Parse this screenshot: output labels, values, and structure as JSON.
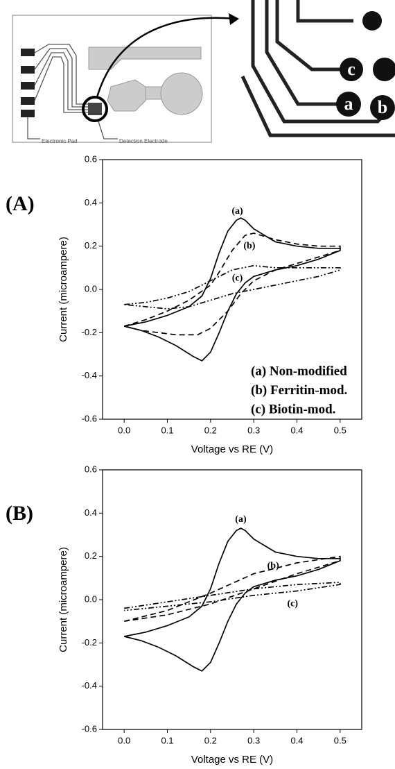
{
  "diagram": {
    "pad_label": "Electronic Pad",
    "electrode_label": "Detection Electrode",
    "zoom_labels": [
      "a",
      "b",
      "c"
    ]
  },
  "chart_data": [
    {
      "type": "line",
      "panel_label": "(A)",
      "x_label": "Voltage vs RE (V)",
      "y_label": "Current (microampere)",
      "xlim": [
        -0.05,
        0.55
      ],
      "ylim": [
        -0.6,
        0.6
      ],
      "xticks": [
        {
          "value": 0,
          "label": "0.0"
        },
        0.1,
        0.2,
        0.3,
        0.4,
        0.5
      ],
      "yticks": [
        -0.6,
        -0.4,
        -0.2,
        {
          "value": 0,
          "label": "0.0"
        },
        0.2,
        0.4,
        0.6
      ],
      "legend_text": [
        "(a) Non-modified",
        "(b) Ferritin-mod.",
        "(c) Biotin-mod."
      ],
      "series": [
        {
          "name": "(a)",
          "color": "#000000",
          "line_style": "solid",
          "x": [
            0.0,
            0.05,
            0.1,
            0.15,
            0.18,
            0.2,
            0.22,
            0.24,
            0.26,
            0.27,
            0.28,
            0.3,
            0.35,
            0.4,
            0.45,
            0.5,
            0.5,
            0.45,
            0.4,
            0.35,
            0.3,
            0.28,
            0.26,
            0.24,
            0.22,
            0.2,
            0.18,
            0.16,
            0.12,
            0.08,
            0.04,
            0.0
          ],
          "values": [
            -0.17,
            -0.15,
            -0.12,
            -0.08,
            -0.03,
            0.05,
            0.17,
            0.27,
            0.32,
            0.33,
            0.32,
            0.28,
            0.22,
            0.2,
            0.19,
            0.19,
            0.18,
            0.14,
            0.11,
            0.09,
            0.06,
            0.03,
            -0.02,
            -0.1,
            -0.2,
            -0.29,
            -0.33,
            -0.31,
            -0.26,
            -0.22,
            -0.19,
            -0.17
          ]
        },
        {
          "name": "(b)",
          "color": "#000000",
          "line_style": "dashed",
          "x": [
            0.0,
            0.05,
            0.1,
            0.15,
            0.2,
            0.22,
            0.25,
            0.28,
            0.3,
            0.35,
            0.4,
            0.45,
            0.5,
            0.5,
            0.45,
            0.4,
            0.35,
            0.3,
            0.27,
            0.24,
            0.2,
            0.17,
            0.12,
            0.08,
            0.04,
            0.0
          ],
          "values": [
            -0.17,
            -0.14,
            -0.1,
            -0.05,
            0.02,
            0.08,
            0.18,
            0.25,
            0.26,
            0.23,
            0.21,
            0.2,
            0.2,
            0.18,
            0.15,
            0.12,
            0.09,
            0.04,
            -0.02,
            -0.1,
            -0.18,
            -0.21,
            -0.21,
            -0.2,
            -0.19,
            -0.17
          ]
        },
        {
          "name": "(c)",
          "color": "#000000",
          "line_style": "dash-dot",
          "x": [
            0.0,
            0.05,
            0.1,
            0.15,
            0.2,
            0.25,
            0.3,
            0.35,
            0.4,
            0.45,
            0.5,
            0.5,
            0.45,
            0.4,
            0.35,
            0.3,
            0.25,
            0.2,
            0.15,
            0.1,
            0.05,
            0.0
          ],
          "values": [
            -0.07,
            -0.06,
            -0.04,
            -0.01,
            0.04,
            0.09,
            0.11,
            0.1,
            0.1,
            0.1,
            0.1,
            0.09,
            0.06,
            0.04,
            0.02,
            0.0,
            -0.02,
            -0.05,
            -0.08,
            -0.09,
            -0.08,
            -0.07
          ]
        }
      ]
    },
    {
      "type": "line",
      "panel_label": "(B)",
      "x_label": "Voltage vs RE (V)",
      "y_label": "Current (microampere)",
      "xlim": [
        -0.05,
        0.55
      ],
      "ylim": [
        -0.6,
        0.6
      ],
      "xticks": [
        {
          "value": 0,
          "label": "0.0"
        },
        0.1,
        0.2,
        0.3,
        0.4,
        0.5
      ],
      "yticks": [
        -0.6,
        -0.4,
        -0.2,
        {
          "value": 0,
          "label": "0.0"
        },
        0.2,
        0.4,
        0.6
      ],
      "series": [
        {
          "name": "(a)",
          "color": "#000000",
          "line_style": "solid",
          "x": [
            0.0,
            0.05,
            0.1,
            0.15,
            0.18,
            0.2,
            0.22,
            0.24,
            0.26,
            0.27,
            0.28,
            0.3,
            0.35,
            0.4,
            0.45,
            0.5,
            0.5,
            0.45,
            0.4,
            0.35,
            0.3,
            0.28,
            0.26,
            0.24,
            0.22,
            0.2,
            0.18,
            0.16,
            0.12,
            0.08,
            0.04,
            0.0
          ],
          "values": [
            -0.17,
            -0.15,
            -0.12,
            -0.08,
            -0.03,
            0.05,
            0.17,
            0.27,
            0.32,
            0.33,
            0.32,
            0.28,
            0.22,
            0.2,
            0.19,
            0.19,
            0.18,
            0.14,
            0.11,
            0.09,
            0.06,
            0.03,
            -0.02,
            -0.1,
            -0.2,
            -0.29,
            -0.33,
            -0.31,
            -0.26,
            -0.22,
            -0.19,
            -0.17
          ]
        },
        {
          "name": "(b)",
          "color": "#000000",
          "line_style": "dashed",
          "x": [
            0.0,
            0.1,
            0.2,
            0.3,
            0.4,
            0.5,
            0.5,
            0.4,
            0.3,
            0.2,
            0.1,
            0.0
          ],
          "values": [
            -0.1,
            -0.05,
            0.03,
            0.12,
            0.17,
            0.2,
            0.18,
            0.12,
            0.05,
            -0.02,
            -0.07,
            -0.1
          ]
        },
        {
          "name": "(c)",
          "color": "#000000",
          "line_style": "dash-dot",
          "x": [
            0.0,
            0.1,
            0.2,
            0.3,
            0.4,
            0.5,
            0.5,
            0.4,
            0.3,
            0.2,
            0.1,
            0.0
          ],
          "values": [
            -0.04,
            -0.01,
            0.02,
            0.05,
            0.07,
            0.08,
            0.07,
            0.04,
            0.02,
            -0.01,
            -0.03,
            -0.05
          ]
        }
      ]
    }
  ]
}
